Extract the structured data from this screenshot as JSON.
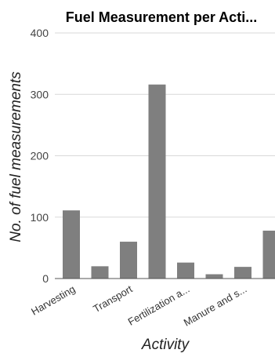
{
  "chart_data": {
    "type": "bar",
    "title": "Fuel Measurement per Acti...",
    "xlabel": "Activity",
    "ylabel": "No. of fuel measurements",
    "categories": [
      "Harvesting",
      "",
      "Transport",
      "",
      "Fertilization a...",
      "",
      "Manure and s...",
      ""
    ],
    "values": [
      111,
      20,
      60,
      316,
      26,
      7,
      19,
      78
    ],
    "ylim": [
      0,
      400
    ],
    "yticks": [
      "0",
      "100",
      "200",
      "300",
      "400"
    ],
    "grid": true,
    "legend": "none",
    "bar_color": "#7f7f7f"
  }
}
